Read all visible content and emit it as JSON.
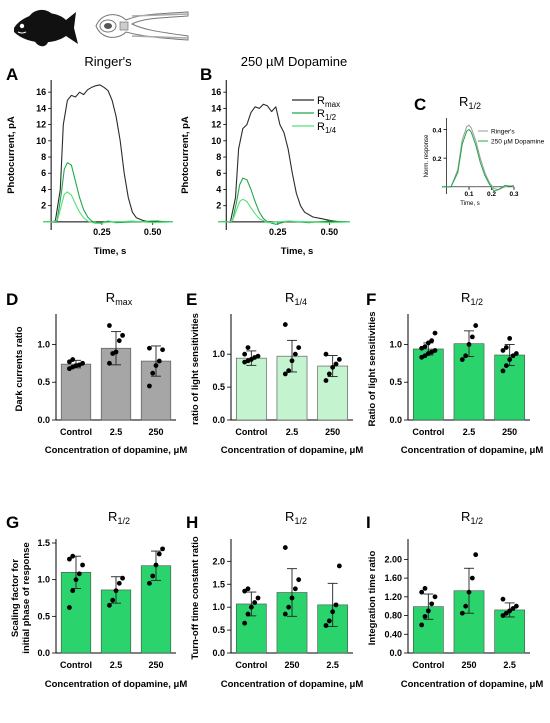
{
  "colors": {
    "black_trace": "#2b2b2b",
    "dark_green": "#1fa94a",
    "light_green": "#56e07a",
    "grey_bar": "#a6a6a6",
    "light_bar": "#c3f3cf",
    "green_bar": "#2bd36d",
    "ringer_trace": "#9a9a9a"
  },
  "icons": [
    "fish-icon",
    "retina-rod-icon"
  ],
  "chart_data": [
    {
      "id": "A",
      "type": "line",
      "letter": "A",
      "title": "Ringer's",
      "ylabel": "Photocurrent, pA",
      "xlabel": "Time, s",
      "xlim": [
        -0.04,
        0.6
      ],
      "ylim": [
        -1,
        17.5
      ],
      "xticks": [
        0.25,
        0.5
      ],
      "xtick_labels": [
        "0.25",
        "0.50"
      ],
      "yticks": [
        2,
        4,
        6,
        8,
        10,
        12,
        14,
        16
      ],
      "yticks_labels": [
        "2",
        "4",
        "6",
        "8",
        "10",
        "12",
        "14",
        "16"
      ],
      "series": [
        {
          "key": "rmax",
          "color": "#2b2b2b",
          "x": [
            -0.04,
            -0.01,
            0.02,
            0.045,
            0.06,
            0.08,
            0.1,
            0.12,
            0.14,
            0.16,
            0.18,
            0.2,
            0.22,
            0.24,
            0.26,
            0.28,
            0.3,
            0.32,
            0.34,
            0.36,
            0.38,
            0.4,
            0.42,
            0.45,
            0.48,
            0.52,
            0.56,
            0.6
          ],
          "y": [
            0,
            0,
            0,
            4,
            12,
            15,
            15.6,
            15.4,
            16,
            15.7,
            16.3,
            16.6,
            16.8,
            16.9,
            16.6,
            16.2,
            15,
            13,
            10,
            6,
            3,
            1.2,
            0.5,
            0.2,
            0,
            0.1,
            0,
            0
          ]
        },
        {
          "key": "r_half",
          "color": "#1fa94a",
          "x": [
            -0.04,
            0,
            0.03,
            0.05,
            0.065,
            0.08,
            0.1,
            0.12,
            0.14,
            0.16,
            0.18,
            0.2,
            0.24,
            0.28,
            0.32,
            0.4,
            0.5,
            0.6
          ],
          "y": [
            0,
            0,
            0.2,
            3.5,
            6.5,
            7.3,
            7,
            5,
            3,
            1.5,
            0.6,
            0.1,
            -0.2,
            0.1,
            -0.1,
            0,
            0.1,
            0
          ]
        },
        {
          "key": "r_quarter",
          "color": "#56e07a",
          "x": [
            -0.04,
            0,
            0.03,
            0.05,
            0.065,
            0.08,
            0.1,
            0.12,
            0.14,
            0.16,
            0.18,
            0.22,
            0.3,
            0.4,
            0.5,
            0.6
          ],
          "y": [
            0,
            0,
            0.1,
            2,
            3.4,
            3.7,
            3.3,
            2.2,
            1.2,
            0.5,
            0.1,
            -0.2,
            0,
            0.1,
            -0.1,
            0
          ]
        }
      ]
    },
    {
      "id": "B",
      "type": "line",
      "letter": "B",
      "title": "250 µM Dopamine",
      "ylabel": "Photocurrent, pA",
      "xlabel": "Time, s",
      "xlim": [
        -0.04,
        0.6
      ],
      "ylim": [
        -1,
        17.5
      ],
      "xticks": [
        0.25,
        0.5
      ],
      "xtick_labels": [
        "0.25",
        "0.50"
      ],
      "yticks": [
        2,
        4,
        6,
        8,
        10,
        12,
        14,
        16
      ],
      "yticks_labels": [
        "2",
        "4",
        "6",
        "8",
        "10",
        "12",
        "14",
        "16"
      ],
      "legend": {
        "placement": "right",
        "entries": [
          {
            "key": "rmax",
            "base": "R",
            "sub": "max",
            "color": "#2b2b2b"
          },
          {
            "key": "r_half",
            "base": "R",
            "sub": "1/2",
            "color": "#1fa94a"
          },
          {
            "key": "r_quarter",
            "base": "R",
            "sub": "1/4",
            "color": "#56e07a"
          }
        ]
      },
      "series": [
        {
          "key": "rmax",
          "color": "#2b2b2b",
          "x": [
            -0.04,
            -0.01,
            0.02,
            0.045,
            0.06,
            0.08,
            0.1,
            0.12,
            0.14,
            0.16,
            0.18,
            0.2,
            0.22,
            0.24,
            0.26,
            0.28,
            0.3,
            0.32,
            0.34,
            0.36,
            0.38,
            0.42,
            0.46,
            0.5,
            0.55,
            0.6
          ],
          "y": [
            0,
            0,
            0,
            3,
            9,
            11.5,
            12,
            13.5,
            14.2,
            14,
            14.5,
            14.3,
            13.6,
            14.2,
            12,
            11,
            9,
            6,
            3.5,
            2,
            1.2,
            0.6,
            0.4,
            0.2,
            0,
            0
          ]
        },
        {
          "key": "r_half",
          "color": "#1fa94a",
          "x": [
            -0.04,
            0,
            0.03,
            0.05,
            0.065,
            0.08,
            0.1,
            0.12,
            0.14,
            0.16,
            0.18,
            0.2,
            0.24,
            0.3,
            0.4,
            0.5,
            0.6
          ],
          "y": [
            0,
            0,
            0.1,
            2.5,
            4.6,
            5.4,
            5.2,
            4,
            2.5,
            1.2,
            0.4,
            0,
            -0.3,
            0.1,
            -0.1,
            0.1,
            0
          ]
        },
        {
          "key": "r_quarter",
          "color": "#56e07a",
          "x": [
            -0.04,
            0,
            0.03,
            0.05,
            0.065,
            0.08,
            0.1,
            0.12,
            0.14,
            0.16,
            0.2,
            0.3,
            0.4,
            0.5,
            0.6
          ],
          "y": [
            0,
            0,
            0.1,
            1.5,
            2.5,
            2.8,
            2.5,
            1.7,
            1,
            0.4,
            -0.1,
            0.1,
            0,
            -0.1,
            0
          ]
        }
      ]
    },
    {
      "id": "C",
      "type": "line",
      "letter": "C",
      "title_base": "R",
      "title_sub": "1/2",
      "ylabel": "Norm. response",
      "xlabel": "Time, s",
      "xlim": [
        -0.02,
        0.3
      ],
      "ylim": [
        -0.05,
        0.48
      ],
      "xticks": [
        0.1,
        0.2,
        0.3
      ],
      "xtick_labels": [
        "0.1",
        "0.2",
        "0.3"
      ],
      "yticks": [
        0.2,
        0.4
      ],
      "yticks_labels": [
        "0.2",
        "0.4"
      ],
      "legend": {
        "placement": "top-right",
        "entries": [
          {
            "key": "ringer",
            "label": "Ringer's",
            "color": "#9a9a9a"
          },
          {
            "key": "dopamine",
            "label": "250 µM Dopamine",
            "color": "#1fa94a"
          }
        ]
      },
      "series": [
        {
          "key": "ringer",
          "color": "#9a9a9a",
          "x": [
            -0.02,
            0.02,
            0.05,
            0.07,
            0.09,
            0.1,
            0.11,
            0.13,
            0.15,
            0.17,
            0.19,
            0.21,
            0.23,
            0.26,
            0.3
          ],
          "y": [
            0,
            0,
            0.12,
            0.33,
            0.42,
            0.43,
            0.41,
            0.32,
            0.2,
            0.1,
            0.03,
            -0.01,
            -0.02,
            0,
            0.01
          ]
        },
        {
          "key": "dopamine",
          "color": "#1fa94a",
          "x": [
            -0.02,
            0.02,
            0.05,
            0.07,
            0.09,
            0.1,
            0.11,
            0.13,
            0.15,
            0.17,
            0.19,
            0.21,
            0.23,
            0.26,
            0.3
          ],
          "y": [
            0,
            0,
            0.1,
            0.3,
            0.39,
            0.4,
            0.38,
            0.29,
            0.17,
            0.08,
            0.02,
            -0.03,
            -0.02,
            0.01,
            0
          ]
        }
      ]
    },
    {
      "id": "D",
      "type": "bar",
      "letter": "D",
      "title_base": "R",
      "title_sub": "max",
      "ylabel": "Dark currents ratio",
      "xlabel": "Concentration of dopamine, μM",
      "categories": [
        "Control",
        "2.5",
        "250"
      ],
      "values": [
        0.74,
        0.95,
        0.78
      ],
      "errors": [
        0.05,
        0.22,
        0.2
      ],
      "points": [
        [
          0.68,
          0.7,
          0.72,
          0.73,
          0.75,
          0.77,
          0.8
        ],
        [
          0.75,
          0.88,
          0.9,
          1.05,
          1.12,
          1.25
        ],
        [
          0.45,
          0.62,
          0.72,
          0.78,
          0.93,
          0.95
        ]
      ],
      "ylim": [
        0,
        1.35
      ],
      "yticks": [
        0,
        0.5,
        1.0
      ],
      "ytick_labels": [
        "0.0",
        "0.5",
        "1.0"
      ],
      "bar_color": "#a6a6a6"
    },
    {
      "id": "E",
      "type": "bar",
      "letter": "E",
      "title_base": "R",
      "title_sub": "1/4",
      "ylabel": "ratio of light sensitivities",
      "xlabel": "Concentration of dopamine, μM",
      "categories": [
        "Control",
        "2.5",
        "250"
      ],
      "values": [
        0.94,
        0.97,
        0.82
      ],
      "errors": [
        0.11,
        0.24,
        0.16
      ],
      "points": [
        [
          0.88,
          0.9,
          0.92,
          0.95,
          0.97,
          1.0,
          1.1
        ],
        [
          0.7,
          0.75,
          0.9,
          1.0,
          1.1,
          1.45
        ],
        [
          0.6,
          0.7,
          0.8,
          0.85,
          0.92,
          1.0
        ]
      ],
      "ylim": [
        0,
        1.55
      ],
      "yticks": [
        0,
        0.5,
        1.0
      ],
      "ytick_labels": [
        "0.0",
        "0.5",
        "1.0"
      ],
      "bar_color": "#c3f3cf"
    },
    {
      "id": "F",
      "type": "bar",
      "letter": "F",
      "title_base": "R",
      "title_sub": "1/2",
      "ylabel": "Ratio of light sensitivities",
      "xlabel": "Concentration of dopamine, μM",
      "categories": [
        "Control",
        "2.5",
        "250"
      ],
      "values": [
        0.94,
        1.01,
        0.86
      ],
      "errors": [
        0.08,
        0.17,
        0.14
      ],
      "points": [
        [
          0.83,
          0.85,
          0.88,
          0.9,
          0.92,
          0.95,
          0.97,
          1.02,
          1.05,
          1.15
        ],
        [
          0.8,
          0.85,
          1.0,
          1.1,
          1.25
        ],
        [
          0.65,
          0.72,
          0.8,
          0.85,
          0.88,
          0.92,
          0.96,
          1.08
        ]
      ],
      "ylim": [
        0,
        1.35
      ],
      "yticks": [
        0,
        0.5,
        1.0
      ],
      "ytick_labels": [
        "0.0",
        "0.5",
        "1.0"
      ],
      "bar_color": "#2bd36d"
    },
    {
      "id": "G",
      "type": "bar",
      "letter": "G",
      "title_base": "R",
      "title_sub": "1/2",
      "ylabel": "Scaling factor for initial phase of response",
      "xlabel": "Concentration of dopamine, μM",
      "categories": [
        "Control",
        "2.5",
        "250"
      ],
      "values": [
        1.1,
        0.86,
        1.19
      ],
      "errors": [
        0.22,
        0.18,
        0.2
      ],
      "points": [
        [
          0.62,
          0.85,
          1.0,
          1.08,
          1.2,
          1.28,
          1.32
        ],
        [
          0.65,
          0.72,
          0.85,
          0.95,
          1.02
        ],
        [
          0.95,
          1.05,
          1.2,
          1.35,
          1.42
        ]
      ],
      "ylim": [
        0,
        1.5
      ],
      "yticks": [
        0,
        0.5,
        1.0,
        1.5
      ],
      "ytick_labels": [
        "0.0",
        "0.5",
        "1.0",
        "1.5"
      ],
      "bar_color": "#2bd36d"
    },
    {
      "id": "H",
      "type": "bar",
      "letter": "H",
      "title_base": "R",
      "title_sub": "1/2",
      "ylabel": "Turn-off time constant ratio",
      "xlabel": "Concentration of dopamine, μM",
      "categories": [
        "Control",
        "250",
        "2.5"
      ],
      "values": [
        1.07,
        1.32,
        1.05
      ],
      "errors": [
        0.26,
        0.52,
        0.47
      ],
      "points": [
        [
          0.65,
          0.85,
          1.0,
          1.1,
          1.2,
          1.35,
          1.4
        ],
        [
          0.85,
          1.0,
          1.2,
          1.4,
          1.6,
          2.3
        ],
        [
          0.6,
          0.7,
          0.9,
          1.05,
          1.9
        ]
      ],
      "ylim": [
        0,
        2.4
      ],
      "yticks": [
        0,
        0.5,
        1.0,
        1.5,
        2.0
      ],
      "ytick_labels": [
        "0.0",
        "0.5",
        "1.0",
        "1.5",
        "2.0"
      ],
      "bar_color": "#2bd36d"
    },
    {
      "id": "I",
      "type": "bar",
      "letter": "I",
      "title_base": "R",
      "title_sub": "1/2",
      "ylabel": "Integration time ratio",
      "xlabel": "Concentration of dopamine, μM",
      "categories": [
        "Control",
        "250",
        "2.5"
      ],
      "values": [
        0.99,
        1.33,
        0.92
      ],
      "errors": [
        0.27,
        0.48,
        0.15
      ],
      "points": [
        [
          0.6,
          0.78,
          0.9,
          1.05,
          1.2,
          1.3,
          1.38
        ],
        [
          0.85,
          1.0,
          1.3,
          1.6,
          2.1
        ],
        [
          0.8,
          0.85,
          0.9,
          0.95,
          1.0,
          1.15
        ]
      ],
      "ylim": [
        0,
        2.35
      ],
      "yticks": [
        0,
        0.4,
        0.8,
        1.2,
        1.6,
        2.0
      ],
      "ytick_labels": [
        "0.0",
        "0.40",
        "0.80",
        "1.20",
        "1.60",
        "2.00"
      ],
      "bar_color": "#2bd36d"
    }
  ]
}
